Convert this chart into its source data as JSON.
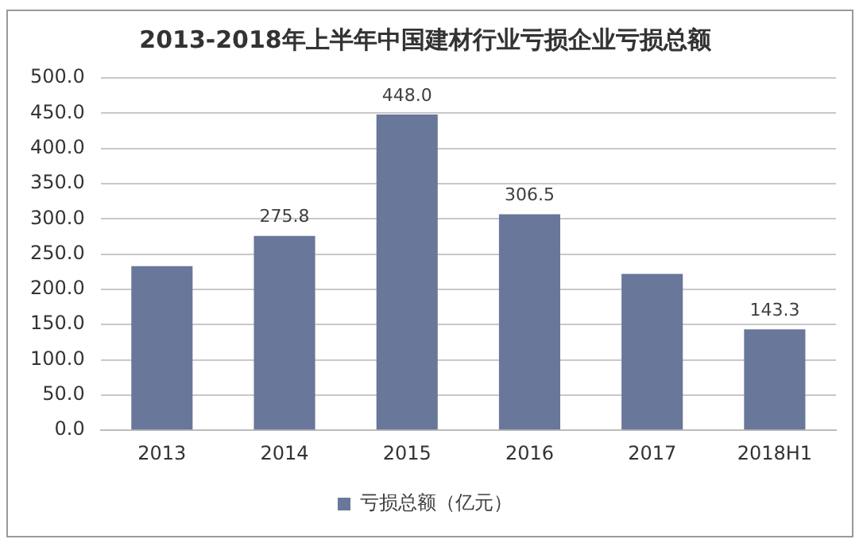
{
  "chart_data": {
    "type": "bar",
    "title": "2013-2018年上半年中国建材行业亏损企业亏损总额",
    "categories": [
      "2013",
      "2014",
      "2015",
      "2016",
      "2017",
      "2018H1"
    ],
    "series": [
      {
        "name": "亏损总额（亿元）",
        "color": "#68779a",
        "values": [
          233,
          275.8,
          448.0,
          306.5,
          222,
          143.3
        ],
        "value_labels": [
          null,
          "275.8",
          "448.0",
          "306.5",
          null,
          "143.3"
        ]
      }
    ],
    "ylim": [
      0,
      500
    ],
    "yticks": [
      {
        "value": 0,
        "label": "0.0"
      },
      {
        "value": 50,
        "label": "50.0"
      },
      {
        "value": 100,
        "label": "100.0"
      },
      {
        "value": 150,
        "label": "150.0"
      },
      {
        "value": 200,
        "label": "200.0"
      },
      {
        "value": 250,
        "label": "250.0"
      },
      {
        "value": 300,
        "label": "300.0"
      },
      {
        "value": 350,
        "label": "350.0"
      },
      {
        "value": 400,
        "label": "400.0"
      },
      {
        "value": 450,
        "label": "450.0"
      },
      {
        "value": 500,
        "label": "500.0"
      }
    ],
    "grid": "y",
    "legend": "bottom"
  }
}
